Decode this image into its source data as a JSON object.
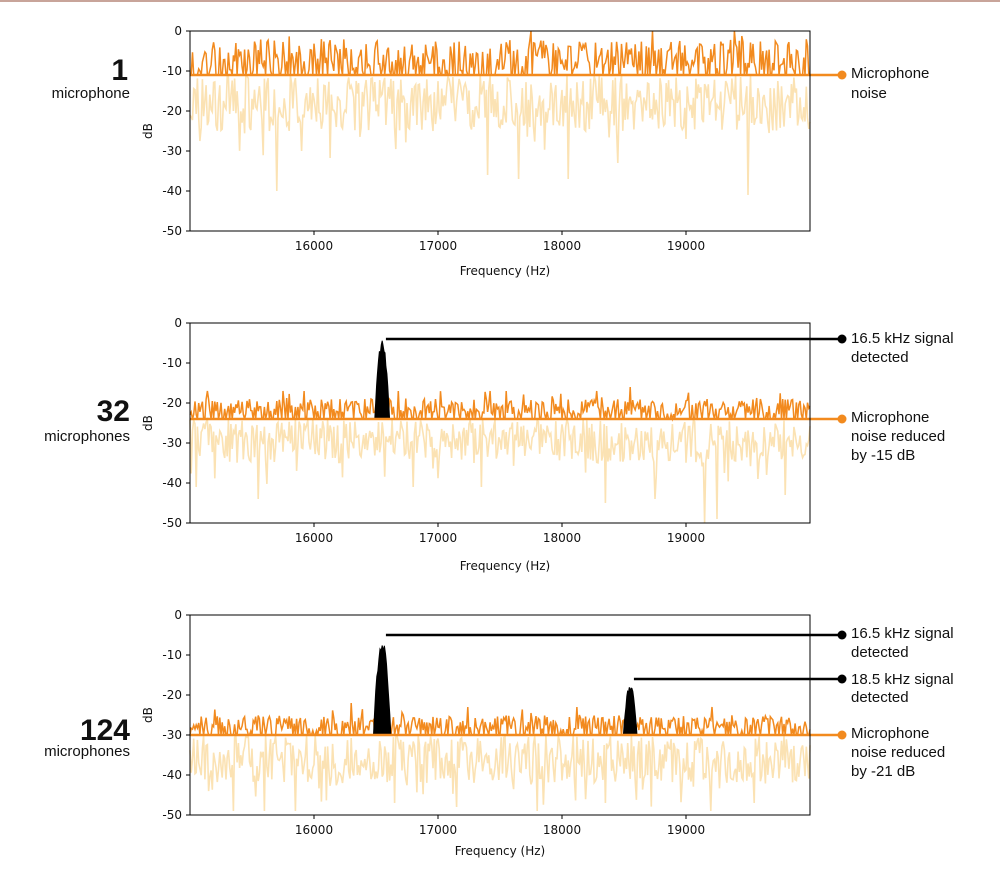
{
  "colors": {
    "noise_line": "#f28a1e",
    "noise_trace": "#f28a1e",
    "raw_noise": "#fbe2b3",
    "signal": "#000000",
    "axes": "#000000"
  },
  "chart_data": [
    {
      "type": "line",
      "mic_count": "1",
      "mic_unit": "microphone",
      "xlabel": "Frequency (Hz)",
      "ylabel": "dB",
      "xlim": [
        15000,
        20000
      ],
      "ylim": [
        -50,
        0
      ],
      "xticks": [
        16000,
        17000,
        18000,
        19000
      ],
      "yticks": [
        0,
        -10,
        -20,
        -30,
        -40,
        -50
      ],
      "noise_floor": -11,
      "noise_trace": {
        "name": "noise peaks",
        "top_range": [
          -10,
          -2
        ],
        "spike_max": 0,
        "spike_x": 17750
      },
      "raw_noise": {
        "range": [
          -25,
          -11
        ],
        "deep_dips": [
          {
            "x": 15700,
            "y": -40
          },
          {
            "x": 15900,
            "y": -30
          },
          {
            "x": 17400,
            "y": -36
          },
          {
            "x": 17650,
            "y": -37
          },
          {
            "x": 18050,
            "y": -37
          },
          {
            "x": 18450,
            "y": -33
          },
          {
            "x": 19000,
            "y": -27
          },
          {
            "x": 19500,
            "y": -41
          }
        ]
      },
      "signals": [],
      "annotations": [
        {
          "label_line1": "Microphone",
          "label_line2": "noise",
          "label_line3": "",
          "y": -11,
          "color": "#f28a1e"
        }
      ]
    },
    {
      "type": "line",
      "mic_count": "32",
      "mic_unit": "microphones",
      "xlabel": "Frequency (Hz)",
      "ylabel": "dB",
      "xlim": [
        15000,
        20000
      ],
      "ylim": [
        -50,
        0
      ],
      "xticks": [
        16000,
        17000,
        18000,
        19000
      ],
      "yticks": [
        0,
        -10,
        -20,
        -30,
        -40,
        -50
      ],
      "noise_floor": -24,
      "noise_trace": {
        "name": "noise peaks",
        "top_range": [
          -23,
          -19
        ],
        "spike_max": -16,
        "spike_x": 18550
      },
      "raw_noise": {
        "range": [
          -35,
          -24
        ],
        "deep_dips": [
          {
            "x": 15050,
            "y": -41
          },
          {
            "x": 15550,
            "y": -44
          },
          {
            "x": 16800,
            "y": -41
          },
          {
            "x": 17350,
            "y": -41
          },
          {
            "x": 18350,
            "y": -45
          },
          {
            "x": 18750,
            "y": -44
          },
          {
            "x": 19150,
            "y": -50
          },
          {
            "x": 19250,
            "y": -49
          },
          {
            "x": 19800,
            "y": -43
          }
        ]
      },
      "signals": [
        {
          "freq": 16550,
          "peak": -4,
          "width": 120
        }
      ],
      "annotations": [
        {
          "label_line1": "16.5 kHz signal",
          "label_line2": "detected",
          "label_line3": "",
          "x": 16580,
          "y": -4,
          "color": "#000000"
        },
        {
          "label_line1": "Microphone",
          "label_line2": "noise reduced",
          "label_line3": "by -15 dB",
          "y": -24,
          "color": "#f28a1e"
        }
      ]
    },
    {
      "type": "line",
      "mic_count": "124",
      "mic_unit": "microphones",
      "xlabel": "Frequency (Hz)",
      "ylabel": "dB",
      "xlim": [
        15000,
        20000
      ],
      "ylim": [
        -50,
        0
      ],
      "xticks": [
        16000,
        17000,
        18000,
        19000
      ],
      "yticks": [
        0,
        -10,
        -20,
        -30,
        -40,
        -50
      ],
      "noise_floor": -30,
      "noise_trace": {
        "name": "noise peaks",
        "top_range": [
          -29,
          -25
        ],
        "spike_max": -22,
        "spike_x": 16300
      },
      "raw_noise": {
        "range": [
          -42,
          -30
        ],
        "deep_dips": [
          {
            "x": 15350,
            "y": -49
          },
          {
            "x": 15600,
            "y": -49
          },
          {
            "x": 15850,
            "y": -49
          },
          {
            "x": 16650,
            "y": -47
          },
          {
            "x": 17150,
            "y": -48
          },
          {
            "x": 17800,
            "y": -49
          },
          {
            "x": 18350,
            "y": -47
          },
          {
            "x": 19200,
            "y": -49
          },
          {
            "x": 19550,
            "y": -47
          }
        ]
      },
      "signals": [
        {
          "freq": 16550,
          "peak": -5,
          "width": 140
        },
        {
          "freq": 18550,
          "peak": -17,
          "width": 110
        }
      ],
      "annotations": [
        {
          "label_line1": "16.5 kHz signal",
          "label_line2": "detected",
          "label_line3": "",
          "x": 16580,
          "y": -5,
          "color": "#000000"
        },
        {
          "label_line1": "18.5 kHz signal",
          "label_line2": "detected",
          "label_line3": "",
          "x": 18580,
          "y": -16,
          "color": "#000000"
        },
        {
          "label_line1": "Microphone",
          "label_line2": "noise reduced",
          "label_line3": "by -21 dB",
          "y": -30,
          "color": "#f28a1e"
        }
      ]
    }
  ]
}
